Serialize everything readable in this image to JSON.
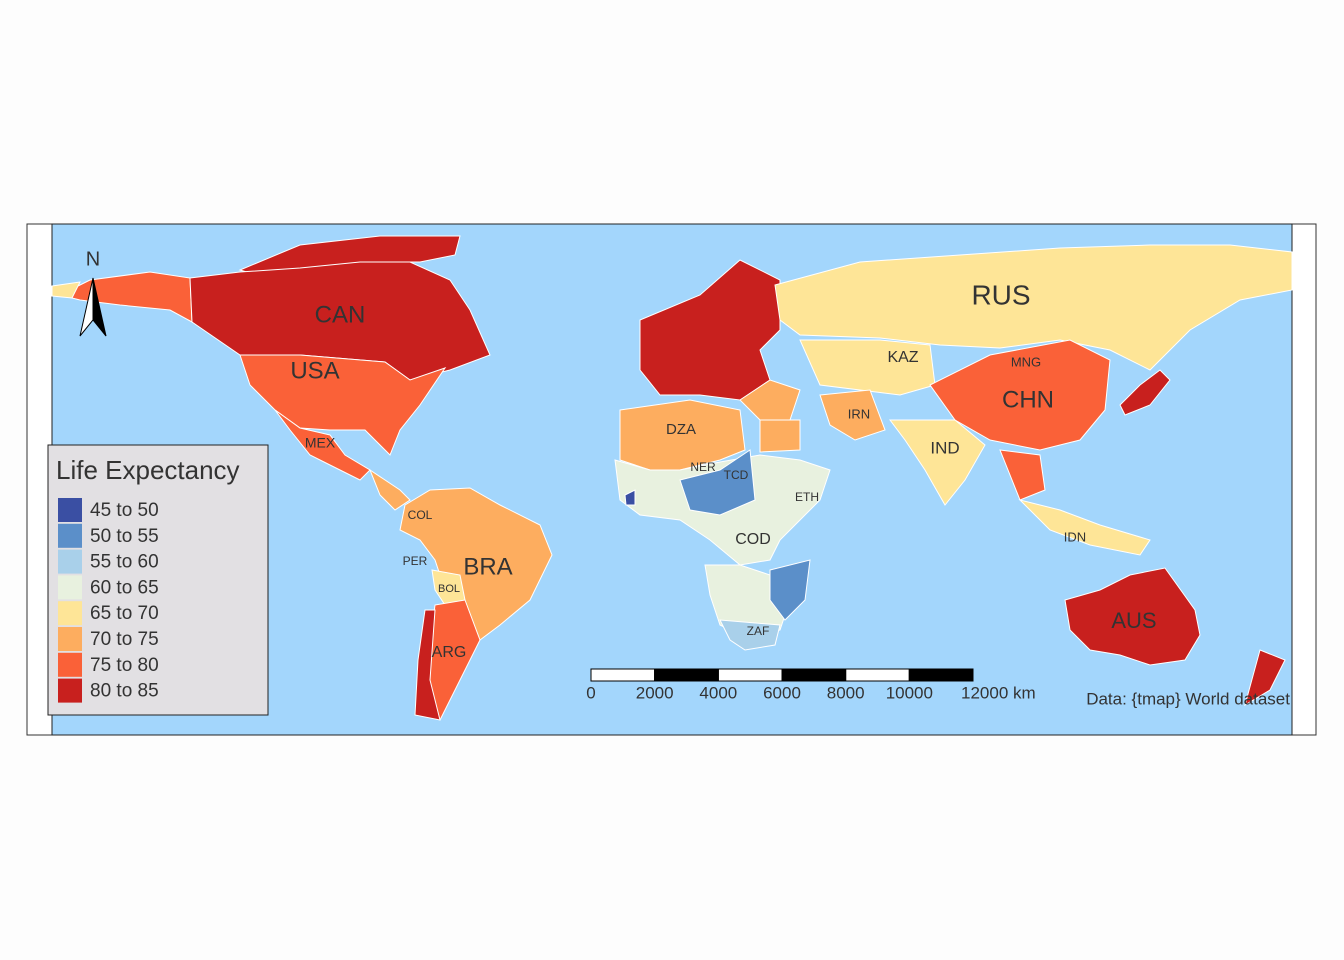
{
  "map": {
    "north_arrow": "N",
    "legend": {
      "title": "Life Expectancy",
      "items": [
        {
          "label": "45 to 50",
          "color": "#3a4fa3"
        },
        {
          "label": "50 to 55",
          "color": "#5b8fc9"
        },
        {
          "label": "55 to 60",
          "color": "#a9d0ea"
        },
        {
          "label": "60 to 65",
          "color": "#e8f1df"
        },
        {
          "label": "65 to 70",
          "color": "#fee597"
        },
        {
          "label": "70 to 75",
          "color": "#fdad5f"
        },
        {
          "label": "75 to 80",
          "color": "#fa6138"
        },
        {
          "label": "80 to 85",
          "color": "#c8201e"
        }
      ]
    },
    "countries": [
      "CAN",
      "USA",
      "MEX",
      "COL",
      "PER",
      "BRA",
      "BOL",
      "ARG",
      "RUS",
      "KAZ",
      "MNG",
      "CHN",
      "IRN",
      "IND",
      "DZA",
      "NER",
      "TCD",
      "ETH",
      "COD",
      "ZAF",
      "IDN",
      "AUS"
    ],
    "scale_bar": {
      "ticks": [
        0,
        2000,
        4000,
        6000,
        8000,
        10000,
        {
          "value": 12000,
          "label": "12000 km"
        }
      ]
    },
    "credit": "Data: {tmap} World dataset"
  }
}
